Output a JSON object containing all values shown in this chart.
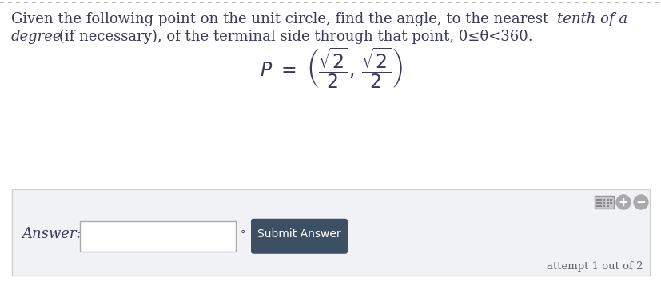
{
  "top_border_color": "#b0b0b0",
  "background_color": "#ffffff",
  "panel_background": "#f0f2f5",
  "panel_border_color": "#d0d0d0",
  "text_color": "#666666",
  "text_color_dark": "#3a3a5c",
  "formula_color": "#3a3a5c",
  "answer_label": "Answer:",
  "submit_button_text": "Submit Answer",
  "submit_button_color": "#3d4f63",
  "submit_button_text_color": "#ffffff",
  "attempt_text": "attempt 1 out of 2",
  "input_box_color": "#ffffff",
  "input_box_border": "#aaaaaa",
  "degree_symbol": "°",
  "kbd_color": "#aaaaaa",
  "plus_color": "#aaaaaa",
  "minus_color": "#aaaaaa"
}
